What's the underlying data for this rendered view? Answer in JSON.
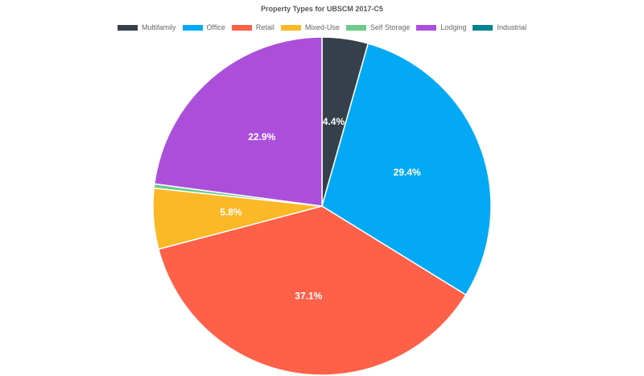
{
  "chart_data": {
    "type": "pie",
    "title": "Property Types for UBSCM 2017-C5",
    "legend_position": "top",
    "slices": [
      {
        "name": "Multifamily",
        "value": 4.4,
        "label": "4.4%",
        "color": "#36404a"
      },
      {
        "name": "Office",
        "value": 29.4,
        "label": "29.4%",
        "color": "#03a9f4"
      },
      {
        "name": "Retail",
        "value": 37.1,
        "label": "37.1%",
        "color": "#ff6048"
      },
      {
        "name": "Mixed-Use",
        "value": 5.8,
        "label": "5.8%",
        "color": "#fbb827"
      },
      {
        "name": "Self Storage",
        "value": 0.4,
        "label": "",
        "color": "#6ccb8a"
      },
      {
        "name": "Lodging",
        "value": 22.9,
        "label": "22.9%",
        "color": "#ab4fdb"
      },
      {
        "name": "Industrial",
        "value": 0.0,
        "label": "",
        "color": "#00838f"
      }
    ]
  }
}
